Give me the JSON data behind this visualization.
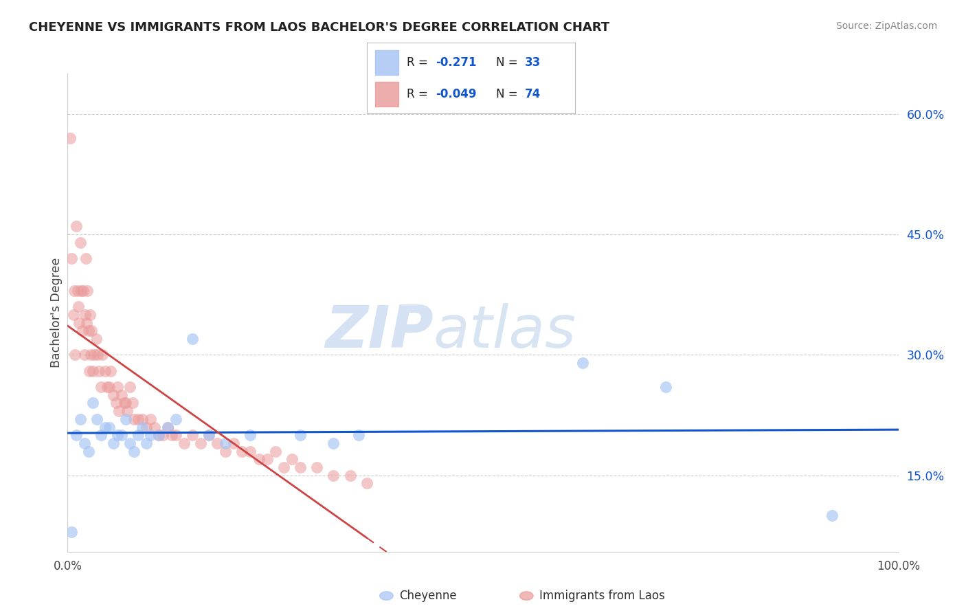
{
  "title": "CHEYENNE VS IMMIGRANTS FROM LAOS BACHELOR'S DEGREE CORRELATION CHART",
  "source": "Source: ZipAtlas.com",
  "ylabel": "Bachelor's Degree",
  "ymin": 0.055,
  "ymax": 0.65,
  "yticks": [
    0.15,
    0.3,
    0.45,
    0.6
  ],
  "ytick_labels": [
    "15.0%",
    "30.0%",
    "45.0%",
    "60.0%"
  ],
  "legend_label1": "Cheyenne",
  "legend_label2": "Immigrants from Laos",
  "blue_color": "#a4c2f4",
  "pink_color": "#ea9999",
  "blue_line_color": "#1155cc",
  "pink_line_color": "#cc4444",
  "watermark_zip": "ZIP",
  "watermark_atlas": "atlas",
  "cheyenne_x": [
    0.005,
    0.01,
    0.015,
    0.02,
    0.025,
    0.03,
    0.035,
    0.04,
    0.045,
    0.05,
    0.055,
    0.06,
    0.065,
    0.07,
    0.075,
    0.08,
    0.085,
    0.09,
    0.095,
    0.1,
    0.11,
    0.12,
    0.13,
    0.15,
    0.17,
    0.19,
    0.22,
    0.28,
    0.32,
    0.35,
    0.62,
    0.72,
    0.92
  ],
  "cheyenne_y": [
    0.08,
    0.2,
    0.22,
    0.19,
    0.18,
    0.24,
    0.22,
    0.2,
    0.21,
    0.21,
    0.19,
    0.2,
    0.2,
    0.22,
    0.19,
    0.18,
    0.2,
    0.21,
    0.19,
    0.2,
    0.2,
    0.21,
    0.22,
    0.32,
    0.2,
    0.19,
    0.2,
    0.2,
    0.19,
    0.2,
    0.29,
    0.26,
    0.1
  ],
  "laos_x": [
    0.003,
    0.005,
    0.007,
    0.008,
    0.009,
    0.01,
    0.012,
    0.013,
    0.014,
    0.015,
    0.016,
    0.018,
    0.019,
    0.02,
    0.021,
    0.022,
    0.023,
    0.024,
    0.025,
    0.026,
    0.027,
    0.028,
    0.029,
    0.03,
    0.032,
    0.034,
    0.036,
    0.038,
    0.04,
    0.042,
    0.045,
    0.048,
    0.05,
    0.052,
    0.055,
    0.058,
    0.06,
    0.062,
    0.065,
    0.068,
    0.07,
    0.072,
    0.075,
    0.078,
    0.08,
    0.085,
    0.09,
    0.095,
    0.1,
    0.105,
    0.11,
    0.115,
    0.12,
    0.125,
    0.13,
    0.14,
    0.15,
    0.16,
    0.17,
    0.18,
    0.19,
    0.2,
    0.21,
    0.22,
    0.23,
    0.24,
    0.25,
    0.26,
    0.27,
    0.28,
    0.3,
    0.32,
    0.34,
    0.36
  ],
  "laos_y": [
    0.57,
    0.42,
    0.35,
    0.38,
    0.3,
    0.46,
    0.38,
    0.36,
    0.34,
    0.44,
    0.38,
    0.33,
    0.38,
    0.3,
    0.35,
    0.42,
    0.34,
    0.38,
    0.33,
    0.28,
    0.35,
    0.3,
    0.33,
    0.28,
    0.3,
    0.32,
    0.3,
    0.28,
    0.26,
    0.3,
    0.28,
    0.26,
    0.26,
    0.28,
    0.25,
    0.24,
    0.26,
    0.23,
    0.25,
    0.24,
    0.24,
    0.23,
    0.26,
    0.24,
    0.22,
    0.22,
    0.22,
    0.21,
    0.22,
    0.21,
    0.2,
    0.2,
    0.21,
    0.2,
    0.2,
    0.19,
    0.2,
    0.19,
    0.2,
    0.19,
    0.18,
    0.19,
    0.18,
    0.18,
    0.17,
    0.17,
    0.18,
    0.16,
    0.17,
    0.16,
    0.16,
    0.15,
    0.15,
    0.14
  ]
}
